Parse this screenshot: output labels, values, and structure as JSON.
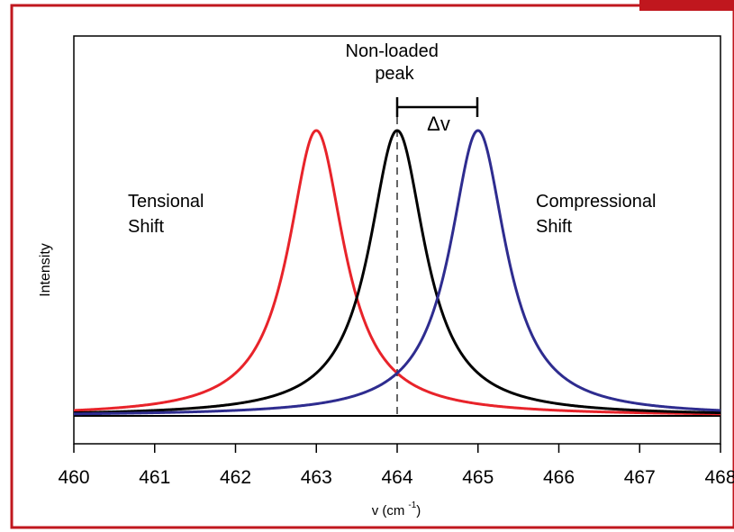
{
  "chart_data": {
    "type": "line",
    "xlabel": "v (cm -1)",
    "ylabel": "Intensity",
    "xlim": [
      460,
      468
    ],
    "xticks": [
      460,
      461,
      462,
      463,
      464,
      465,
      466,
      467,
      468
    ],
    "series": [
      {
        "color": "#e8232a",
        "center": 463,
        "peak_intensity": 1.0
      },
      {
        "color": "#000000",
        "center": 464,
        "peak_intensity": 1.0
      },
      {
        "color": "#2e2c8f",
        "center": 465,
        "peak_intensity": 1.0
      }
    ],
    "annotations": {
      "non_loaded_peak": "Non-loaded peak",
      "delta": "Δv",
      "tensional": [
        "Tensional",
        "Shift"
      ],
      "compressional": [
        "Compressional",
        "Shift"
      ]
    },
    "colors": {
      "frame": "#c0171e",
      "axis": "#000000"
    }
  }
}
